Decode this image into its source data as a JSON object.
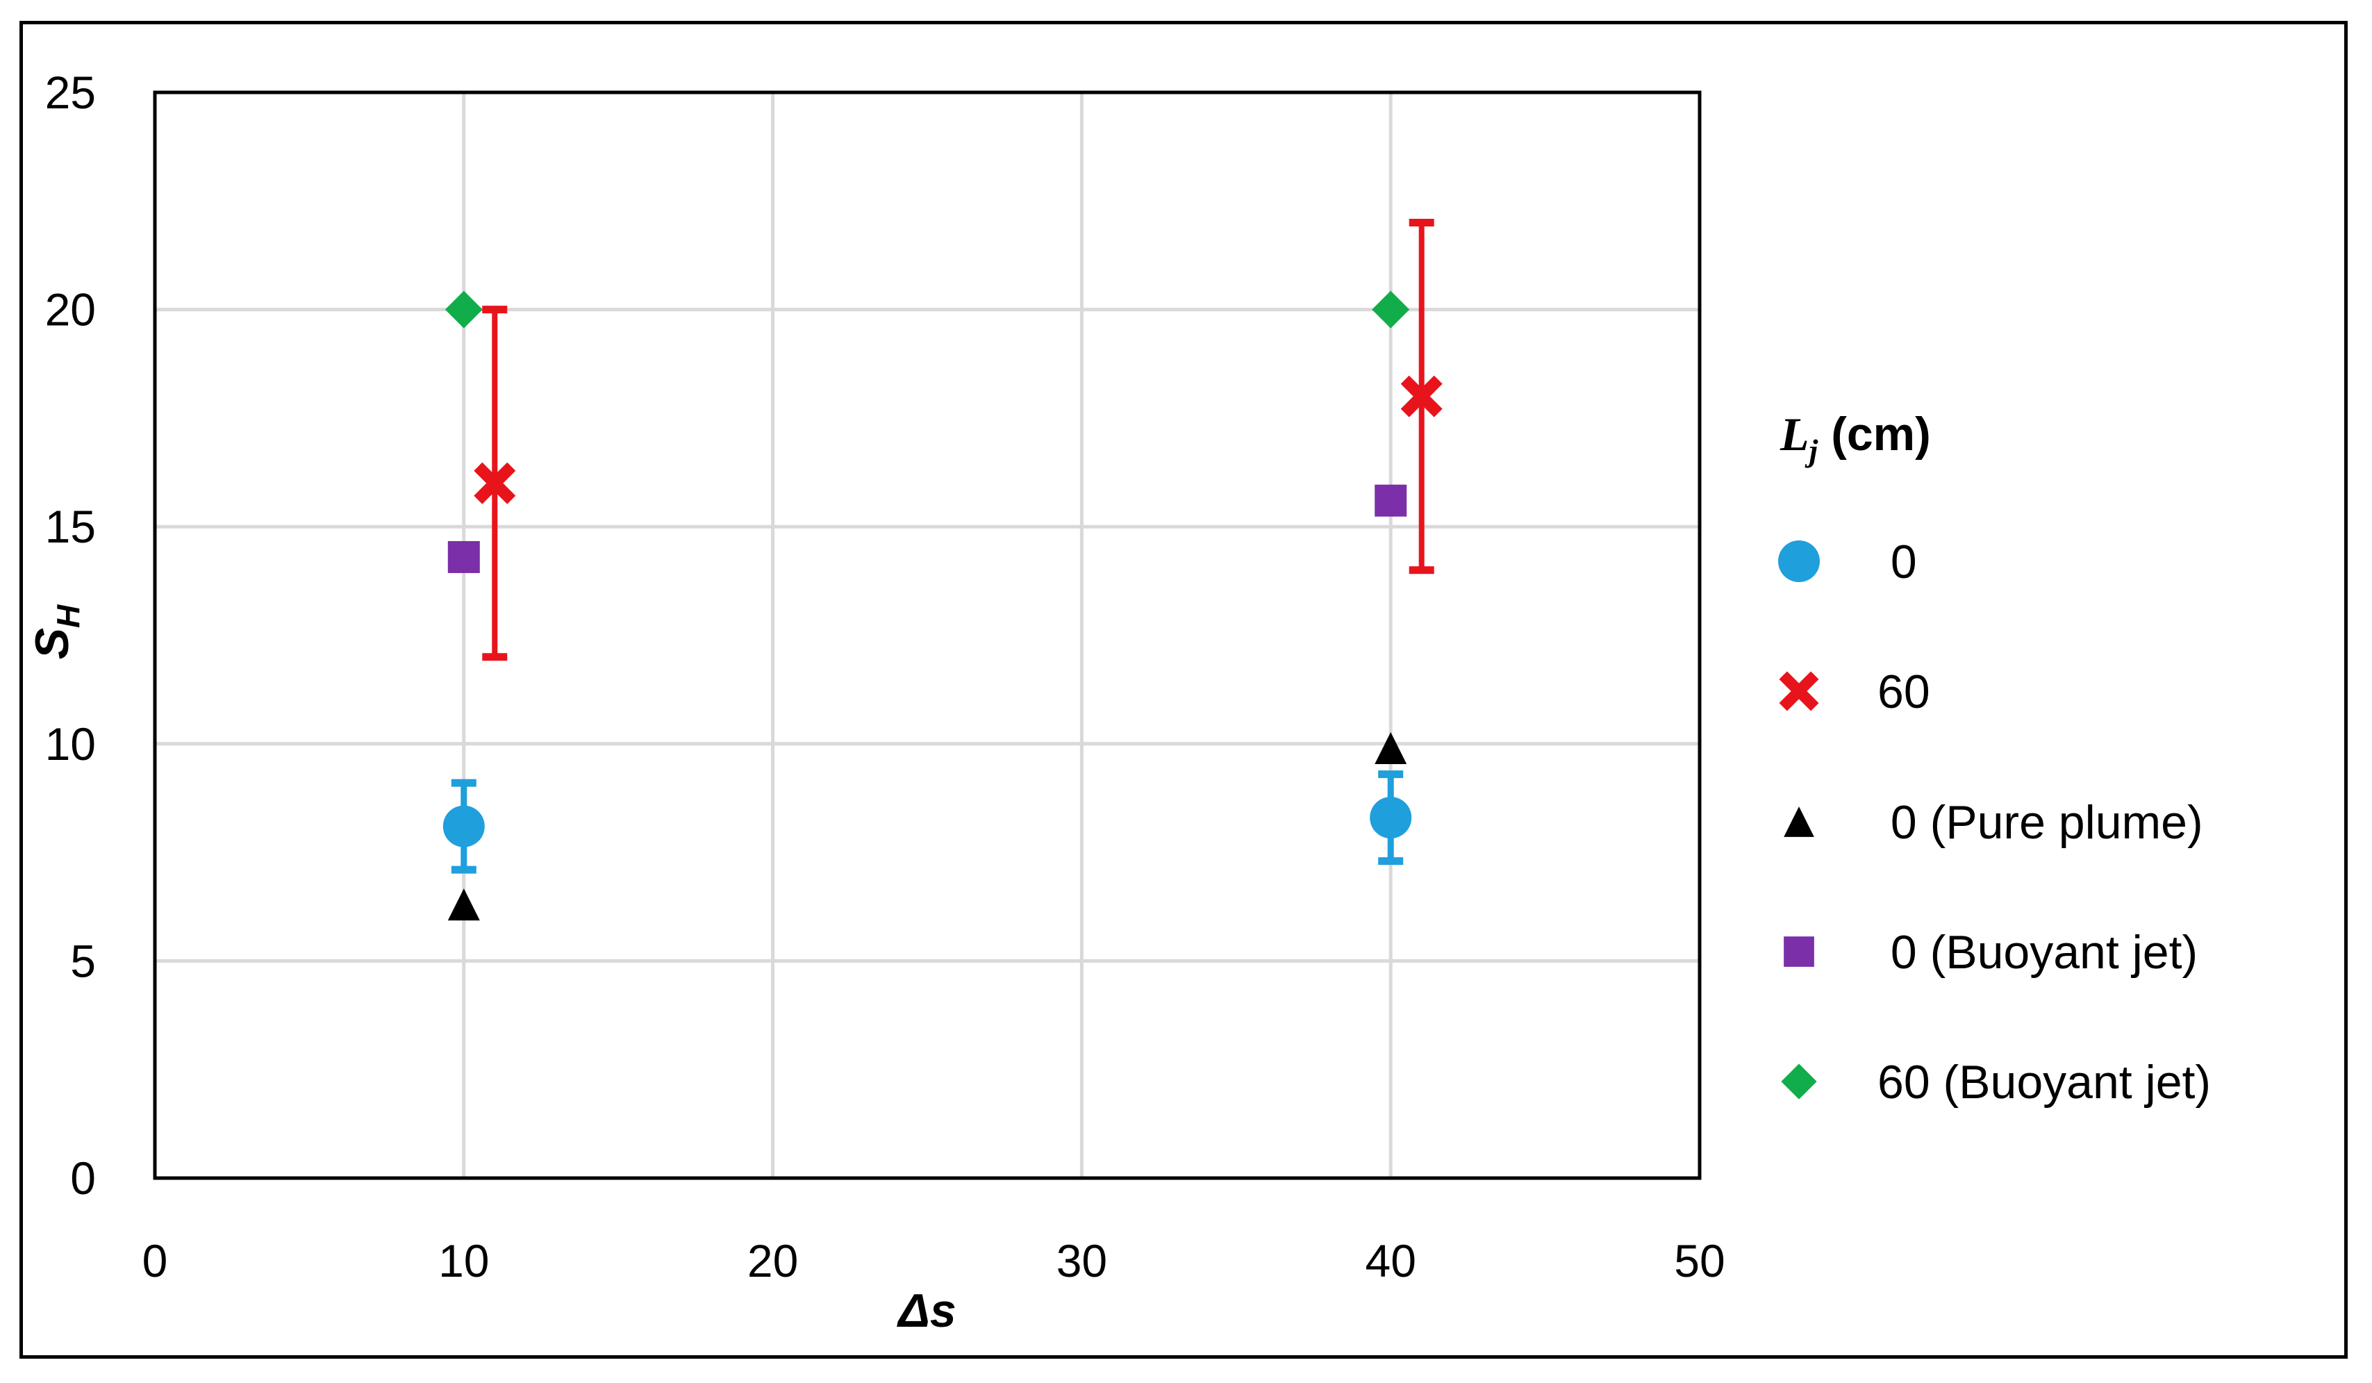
{
  "chart_data": {
    "type": "scatter",
    "xlabel": "Δs",
    "ylabel": {
      "main": "S",
      "sub": "H"
    },
    "xlim": [
      0,
      50
    ],
    "ylim": [
      0,
      25
    ],
    "x_ticks": [
      0,
      10,
      20,
      30,
      40,
      50
    ],
    "y_ticks": [
      0,
      5,
      10,
      15,
      20,
      25
    ],
    "grid": true,
    "legend_position": "right",
    "legend_title": {
      "main": "L",
      "sub": "j",
      "rest": " (cm)"
    },
    "series": [
      {
        "name": "0",
        "marker": "circle",
        "color": "#1f9fdc",
        "points": [
          {
            "x": 10,
            "y": 8.1,
            "err_low": 7.1,
            "err_high": 9.1
          },
          {
            "x": 40,
            "y": 8.3,
            "err_low": 7.3,
            "err_high": 9.3
          }
        ]
      },
      {
        "name": "60",
        "marker": "x",
        "color": "#e8141b",
        "points": [
          {
            "x": 11,
            "y": 16.0,
            "err_low": 12.0,
            "err_high": 20.0
          },
          {
            "x": 41,
            "y": 18.0,
            "err_low": 14.0,
            "err_high": 22.0
          }
        ]
      },
      {
        "name": "0 (Pure plume)",
        "marker": "triangle",
        "color": "#000000",
        "points": [
          {
            "x": 10,
            "y": 6.3
          },
          {
            "x": 40,
            "y": 9.9
          }
        ]
      },
      {
        "name": "0 (Buoyant jet)",
        "marker": "square",
        "color": "#7b2fa8",
        "points": [
          {
            "x": 10,
            "y": 14.3
          },
          {
            "x": 40,
            "y": 15.6
          }
        ]
      },
      {
        "name": "60 (Buoyant jet)",
        "marker": "diamond",
        "color": "#12ad4b",
        "points": [
          {
            "x": 10,
            "y": 20.0
          },
          {
            "x": 40,
            "y": 20.0
          }
        ]
      }
    ]
  }
}
